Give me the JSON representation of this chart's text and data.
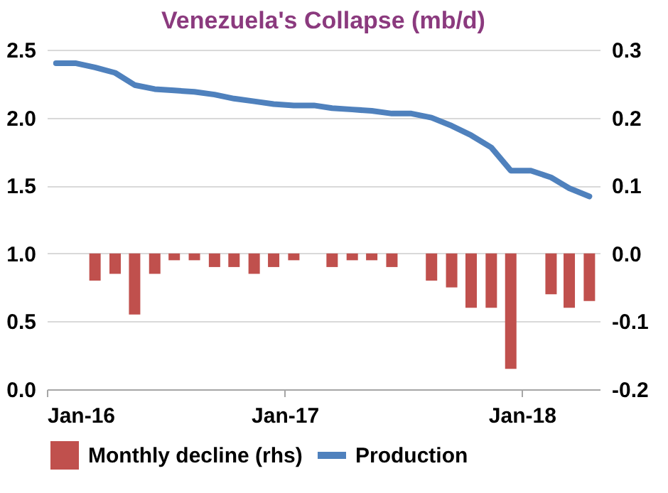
{
  "chart_data": {
    "type": "bar",
    "title": "Venezuela's Collapse (mb/d)",
    "x": [
      "2016-01-15",
      "2016-02-15",
      "2016-03-15",
      "2016-04-15",
      "2016-05-15",
      "2016-06-15",
      "2016-07-15",
      "2016-08-15",
      "2016-09-15",
      "2016-10-15",
      "2016-11-15",
      "2016-12-15",
      "2017-01-15",
      "2017-02-15",
      "2017-03-15",
      "2017-04-15",
      "2017-05-15",
      "2017-06-15",
      "2017-07-15",
      "2017-08-15",
      "2017-09-15",
      "2017-10-15",
      "2017-11-15",
      "2017-12-15",
      "2018-01-15",
      "2018-02-15",
      "2018-03-15",
      "2018-04-15"
    ],
    "series": [
      {
        "name": "Monthly decline (rhs)",
        "axis": "y2",
        "color": "#c0504d",
        "values": [
          null,
          null,
          -0.04,
          -0.03,
          -0.09,
          -0.03,
          -0.01,
          -0.01,
          -0.02,
          -0.02,
          -0.03,
          -0.02,
          -0.01,
          null,
          -0.02,
          -0.01,
          -0.01,
          -0.02,
          null,
          -0.04,
          -0.05,
          -0.08,
          -0.08,
          -0.17,
          null,
          -0.06,
          -0.08,
          -0.07
        ]
      },
      {
        "name": "Production",
        "type": "line",
        "color": "#4f81bd",
        "values": [
          2.4,
          2.4,
          2.37,
          2.33,
          2.24,
          2.21,
          2.2,
          2.19,
          2.17,
          2.14,
          2.12,
          2.1,
          2.09,
          2.09,
          2.07,
          2.06,
          2.05,
          2.03,
          2.03,
          2.0,
          1.94,
          1.87,
          1.78,
          1.61,
          1.61,
          1.56,
          1.48,
          1.42
        ]
      }
    ],
    "xlim": [
      "2016-01-01",
      "2018-05-01"
    ],
    "xticks": [
      {
        "value": "2016-01-01",
        "label": "Jan-16"
      },
      {
        "value": "2017-01-01",
        "label": "Jan-17"
      },
      {
        "value": "2018-01-01",
        "label": "Jan-18"
      }
    ],
    "ylim": [
      0,
      2.5
    ],
    "yticks": [
      {
        "value": 0,
        "label": "0.0"
      },
      0.5,
      {
        "value": 1,
        "label": "1.0"
      },
      1.5,
      {
        "value": 2,
        "label": "2.0"
      },
      2.5
    ],
    "y2lim": [
      -0.2,
      0.3
    ],
    "y2ticks": [
      -0.2,
      -0.1,
      {
        "value": 0,
        "label": "0.0"
      },
      0.1,
      0.2,
      0.3
    ],
    "grid": "y",
    "legend": "bottom"
  }
}
